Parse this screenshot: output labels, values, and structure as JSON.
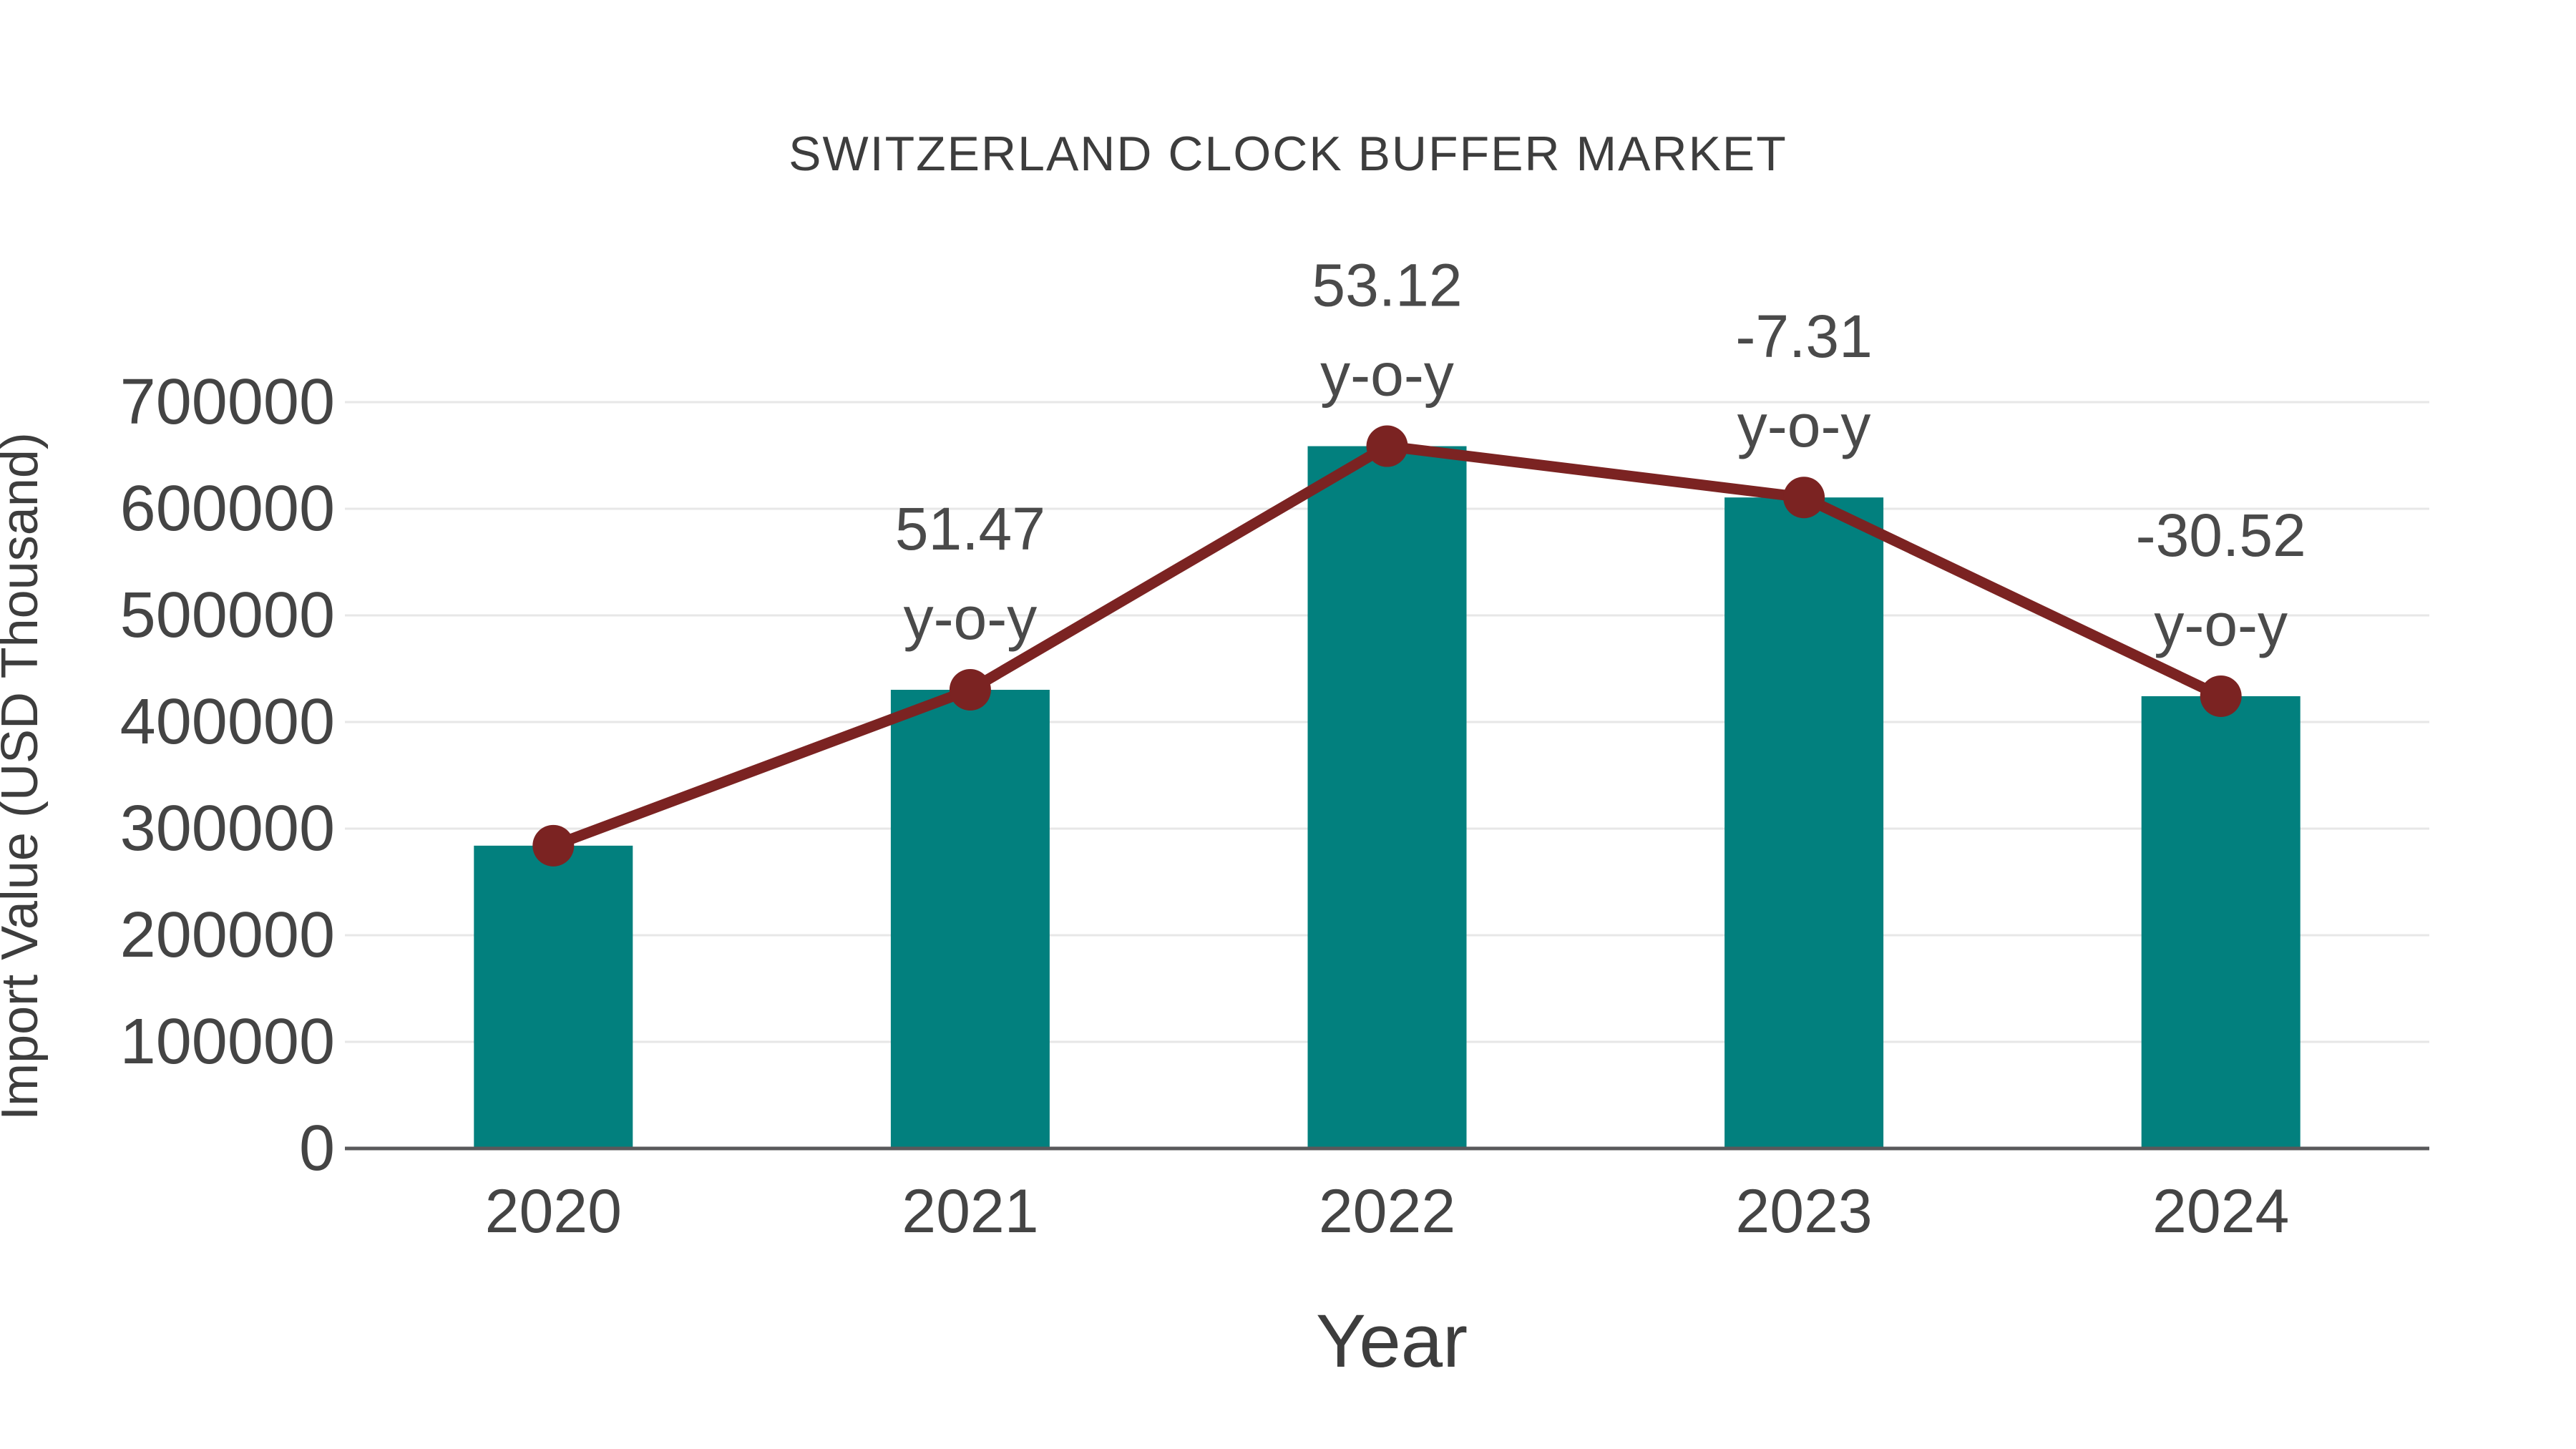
{
  "chart_data": {
    "type": "bar+line",
    "title": "SWITZERLAND CLOCK BUFFER MARKET",
    "xlabel": "Year",
    "ylabel": "Import Value (USD Thousand)",
    "categories": [
      "2020",
      "2021",
      "2022",
      "2023",
      "2024"
    ],
    "series": [
      {
        "name": "Import Value bars",
        "type": "bar",
        "color": "#02807E",
        "values": [
          284000,
          430200,
          658700,
          610600,
          424200
        ]
      },
      {
        "name": "Import Value trend line",
        "type": "line",
        "color": "#7B2322",
        "values": [
          284000,
          430200,
          658700,
          610600,
          424200
        ]
      }
    ],
    "annotations": [
      {
        "x": "2021",
        "value_text": "51.47",
        "label_text": "y-o-y"
      },
      {
        "x": "2022",
        "value_text": "53.12",
        "label_text": "y-o-y"
      },
      {
        "x": "2023",
        "value_text": "-7.31",
        "label_text": "y-o-y"
      },
      {
        "x": "2024",
        "value_text": "-30.52",
        "label_text": "y-o-y"
      }
    ],
    "ylim": [
      0,
      700000
    ],
    "yticks": [
      0,
      100000,
      200000,
      300000,
      400000,
      500000,
      600000,
      700000
    ],
    "grid": true,
    "legend_position": "none",
    "style": {
      "bar_color": "#02807E",
      "line_color": "#7B2322",
      "text_color": "#444444",
      "title_color": "#3D3D3D",
      "grid_color": "#E7E7E7",
      "axis_color": "#59595B",
      "background": "#FFFFFF"
    }
  }
}
